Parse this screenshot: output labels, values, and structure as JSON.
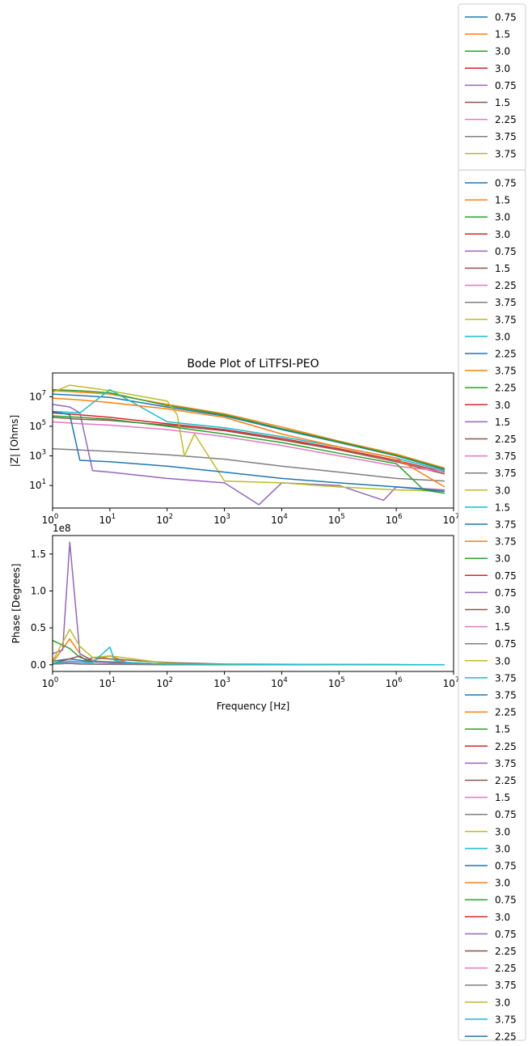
{
  "figure": {
    "title": "Bode Plot of LiTFSI-PEO"
  },
  "palette": [
    "#1f77b4",
    "#ff7f0e",
    "#2ca02c",
    "#d62728",
    "#9467bd",
    "#8c564b",
    "#e377c2",
    "#7f7f7f",
    "#bcbd22",
    "#17becf"
  ],
  "chart_data": [
    {
      "type": "line",
      "title": "Bode Plot of LiTFSI-PEO",
      "xlabel": "",
      "ylabel": "|Z| [Ohms]",
      "xscale": "log",
      "yscale": "log",
      "xlim": [
        1,
        10000000
      ],
      "ylim": [
        0.3,
        400000000
      ],
      "xticks": [
        1,
        10,
        100,
        1000,
        10000,
        100000,
        1000000,
        10000000
      ],
      "xtick_labels": [
        {
          "base": "10",
          "exp": "0"
        },
        {
          "base": "10",
          "exp": "1"
        },
        {
          "base": "10",
          "exp": "2"
        },
        {
          "base": "10",
          "exp": "3"
        },
        {
          "base": "10",
          "exp": "4"
        },
        {
          "base": "10",
          "exp": "5"
        },
        {
          "base": "10",
          "exp": "6"
        },
        {
          "base": "10",
          "exp": "7"
        }
      ],
      "yticks": [
        10,
        1000,
        100000,
        10000000
      ],
      "ytick_labels": [
        {
          "base": "10",
          "exp": "1"
        },
        {
          "base": "10",
          "exp": "3"
        },
        {
          "base": "10",
          "exp": "5"
        },
        {
          "base": "10",
          "exp": "7"
        }
      ],
      "grid": false,
      "note": "approx. 60 overlapping impedance-magnitude traces; representative traces below",
      "series": [
        {
          "name": "0.75",
          "x": [
            1,
            3,
            10,
            100,
            1000,
            10000,
            100000,
            1000000,
            7000000
          ],
          "y": [
            15000000,
            12000000,
            9000000,
            2000000,
            500000,
            60000,
            8000,
            1000,
            120
          ]
        },
        {
          "name": "1.5",
          "x": [
            1,
            3,
            10,
            100,
            1000,
            10000,
            100000,
            1000000,
            7000000
          ],
          "y": [
            25000000,
            20000000,
            15000000,
            3000000,
            700000,
            90000,
            10000,
            1300,
            150
          ]
        },
        {
          "name": "3.0",
          "x": [
            1,
            3,
            10,
            100,
            1000,
            10000,
            100000,
            1000000,
            7000000
          ],
          "y": [
            30000000,
            25000000,
            18000000,
            2500000,
            600000,
            70000,
            9000,
            1100,
            130
          ]
        },
        {
          "name": "3.0",
          "x": [
            1,
            3,
            10,
            100,
            1000,
            10000,
            100000,
            1000000,
            7000000
          ],
          "y": [
            800000,
            600000,
            400000,
            150000,
            60000,
            15000,
            3000,
            500,
            80
          ]
        },
        {
          "name": "0.75",
          "x": [
            1,
            2,
            3,
            5,
            10,
            100,
            1000,
            4000,
            10000,
            100000,
            600000,
            1000000,
            7000000
          ],
          "y": [
            3000000,
            2000000,
            800000,
            100,
            80,
            30,
            15,
            0.5,
            15,
            10,
            1,
            8,
            5
          ]
        },
        {
          "name": "1.5",
          "x": [
            1,
            3,
            10,
            100,
            1000,
            10000,
            100000,
            1000000,
            7000000
          ],
          "y": [
            400000,
            300000,
            250000,
            120000,
            50000,
            12000,
            2500,
            400,
            60
          ]
        },
        {
          "name": "2.25",
          "x": [
            1,
            3,
            10,
            100,
            1000,
            10000,
            100000,
            1000000,
            7000000
          ],
          "y": [
            200000,
            150000,
            120000,
            60000,
            20000,
            5000,
            1000,
            200,
            90
          ]
        },
        {
          "name": "3.75",
          "x": [
            1,
            3,
            10,
            100,
            1000,
            10000,
            100000,
            1000000,
            7000000
          ],
          "y": [
            3000,
            2500,
            2000,
            1200,
            600,
            200,
            80,
            30,
            20
          ]
        },
        {
          "name": "3.75",
          "x": [
            1,
            2,
            10,
            100,
            150,
            200,
            300,
            1000,
            10000,
            100000,
            1000000,
            7000000
          ],
          "y": [
            20000000,
            60000000,
            25000000,
            5000000,
            600000,
            1000,
            30000,
            20,
            15,
            8,
            5,
            4
          ]
        },
        {
          "name": "3.0",
          "x": [
            1,
            3,
            10,
            100,
            1000,
            10000,
            100000,
            1000000,
            7000000
          ],
          "y": [
            1000000,
            800000,
            30000000,
            200000,
            80000,
            20000,
            4000,
            700,
            100
          ]
        },
        {
          "name": "0.75",
          "x": [
            1,
            2,
            3,
            10,
            100,
            1000,
            10000,
            100000,
            1000000,
            7000000
          ],
          "y": [
            1000000,
            600000,
            500,
            400,
            200,
            80,
            30,
            15,
            8,
            4
          ]
        },
        {
          "name": "3.0",
          "x": [
            1,
            3,
            10,
            100,
            1000,
            10000,
            100000,
            1000000,
            7000000
          ],
          "y": [
            8000000,
            6000000,
            4000000,
            1500000,
            400000,
            30000,
            4000,
            700,
            8
          ]
        },
        {
          "name": "2.25",
          "x": [
            1,
            3,
            10,
            100,
            1000,
            10000,
            100000,
            1000000,
            3000000,
            7000000
          ],
          "y": [
            500000,
            400000,
            300000,
            100000,
            30000,
            8000,
            1500,
            300,
            5,
            3
          ]
        }
      ]
    },
    {
      "type": "line",
      "title": "",
      "xlabel": "Frequency [Hz]",
      "ylabel": "Phase [Degrees]",
      "offset_text": "1e8",
      "xscale": "log",
      "yscale": "linear",
      "xlim": [
        1,
        10000000
      ],
      "ylim": [
        -0.09,
        1.75
      ],
      "xticks": [
        1,
        10,
        100,
        1000,
        10000,
        100000,
        1000000,
        10000000
      ],
      "xtick_labels": [
        {
          "base": "10",
          "exp": "0"
        },
        {
          "base": "10",
          "exp": "1"
        },
        {
          "base": "10",
          "exp": "2"
        },
        {
          "base": "10",
          "exp": "3"
        },
        {
          "base": "10",
          "exp": "4"
        },
        {
          "base": "10",
          "exp": "5"
        },
        {
          "base": "10",
          "exp": "6"
        },
        {
          "base": "10",
          "exp": "7"
        }
      ],
      "yticks": [
        0.0,
        0.5,
        1.0,
        1.5
      ],
      "ytick_labels": [
        "0.0",
        "0.5",
        "1.0",
        "1.5"
      ],
      "grid": false,
      "series": [
        {
          "name": "0.75",
          "x": [
            1,
            2,
            3,
            5,
            10,
            20,
            100,
            1000,
            7000000
          ],
          "y": [
            0.05,
            0.08,
            0.06,
            0.04,
            0.03,
            0.02,
            0.005,
            0.002,
            0.0
          ]
        },
        {
          "name": "1.5",
          "x": [
            1,
            2,
            3,
            5,
            10,
            12,
            20,
            100,
            1000,
            7000000
          ],
          "y": [
            0.03,
            0.35,
            0.15,
            0.06,
            0.12,
            0.1,
            0.03,
            0.01,
            0.002,
            0.0
          ]
        },
        {
          "name": "3.0",
          "x": [
            1,
            2,
            3,
            5,
            10,
            100,
            1000,
            7000000
          ],
          "y": [
            0.33,
            0.22,
            0.1,
            0.05,
            0.04,
            0.01,
            0.002,
            0.0
          ]
        },
        {
          "name": "3.0",
          "x": [
            1,
            2,
            3,
            10,
            100,
            7000000
          ],
          "y": [
            0.01,
            0.02,
            0.01,
            0.01,
            0.003,
            0.0
          ]
        },
        {
          "name": "0.75",
          "x": [
            1,
            1.5,
            2,
            3,
            5,
            10,
            100,
            1000,
            7000000
          ],
          "y": [
            0.15,
            0.2,
            1.66,
            0.15,
            0.05,
            0.03,
            0.01,
            0.002,
            0.0
          ]
        },
        {
          "name": "1.5",
          "x": [
            1,
            2,
            3,
            4,
            5,
            10,
            100,
            1000,
            7000000
          ],
          "y": [
            0.02,
            0.08,
            0.12,
            0.05,
            0.1,
            0.08,
            0.03,
            0.01,
            0.0
          ]
        },
        {
          "name": "2.25",
          "x": [
            1,
            2,
            3,
            10,
            100,
            7000000
          ],
          "y": [
            0.02,
            0.03,
            0.02,
            0.01,
            0.003,
            0.0
          ]
        },
        {
          "name": "3.75",
          "x": [
            1,
            2,
            3,
            10,
            100,
            7000000
          ],
          "y": [
            0.01,
            0.02,
            0.01,
            0.005,
            0.002,
            0.0
          ]
        },
        {
          "name": "3.75",
          "x": [
            1,
            2,
            3,
            5,
            10,
            100,
            1000,
            7000000
          ],
          "y": [
            0.05,
            0.48,
            0.25,
            0.1,
            0.12,
            0.02,
            0.005,
            0.0
          ]
        },
        {
          "name": "3.0",
          "x": [
            1,
            2,
            3,
            5,
            10,
            12,
            20,
            100,
            7000000
          ],
          "y": [
            0.02,
            0.05,
            0.04,
            0.03,
            0.24,
            0.06,
            0.03,
            0.01,
            0.0
          ]
        }
      ]
    }
  ],
  "legends": [
    {
      "labels": [
        "0.75",
        "1.5",
        "3.0",
        "3.0",
        "0.75",
        "1.5",
        "2.25",
        "3.75",
        "3.75",
        "3.0",
        "2.25",
        "3.75"
      ]
    },
    {
      "labels": [
        "0.75",
        "1.5",
        "3.0",
        "3.0",
        "0.75",
        "1.5",
        "2.25",
        "3.75",
        "3.75",
        "3.0",
        "2.25",
        "3.75",
        "2.25",
        "3.0",
        "1.5",
        "2.25",
        "3.75",
        "3.75",
        "3.0",
        "1.5",
        "3.75",
        "3.75",
        "3.0",
        "0.75",
        "0.75",
        "3.0",
        "1.5",
        "0.75",
        "3.0",
        "3.75",
        "3.75",
        "2.25",
        "1.5",
        "2.25",
        "3.75",
        "2.25",
        "1.5",
        "0.75",
        "3.0",
        "3.0",
        "0.75",
        "3.0",
        "0.75",
        "3.0",
        "0.75",
        "2.25",
        "2.25",
        "3.75",
        "3.0",
        "3.75",
        "2.25"
      ]
    }
  ]
}
